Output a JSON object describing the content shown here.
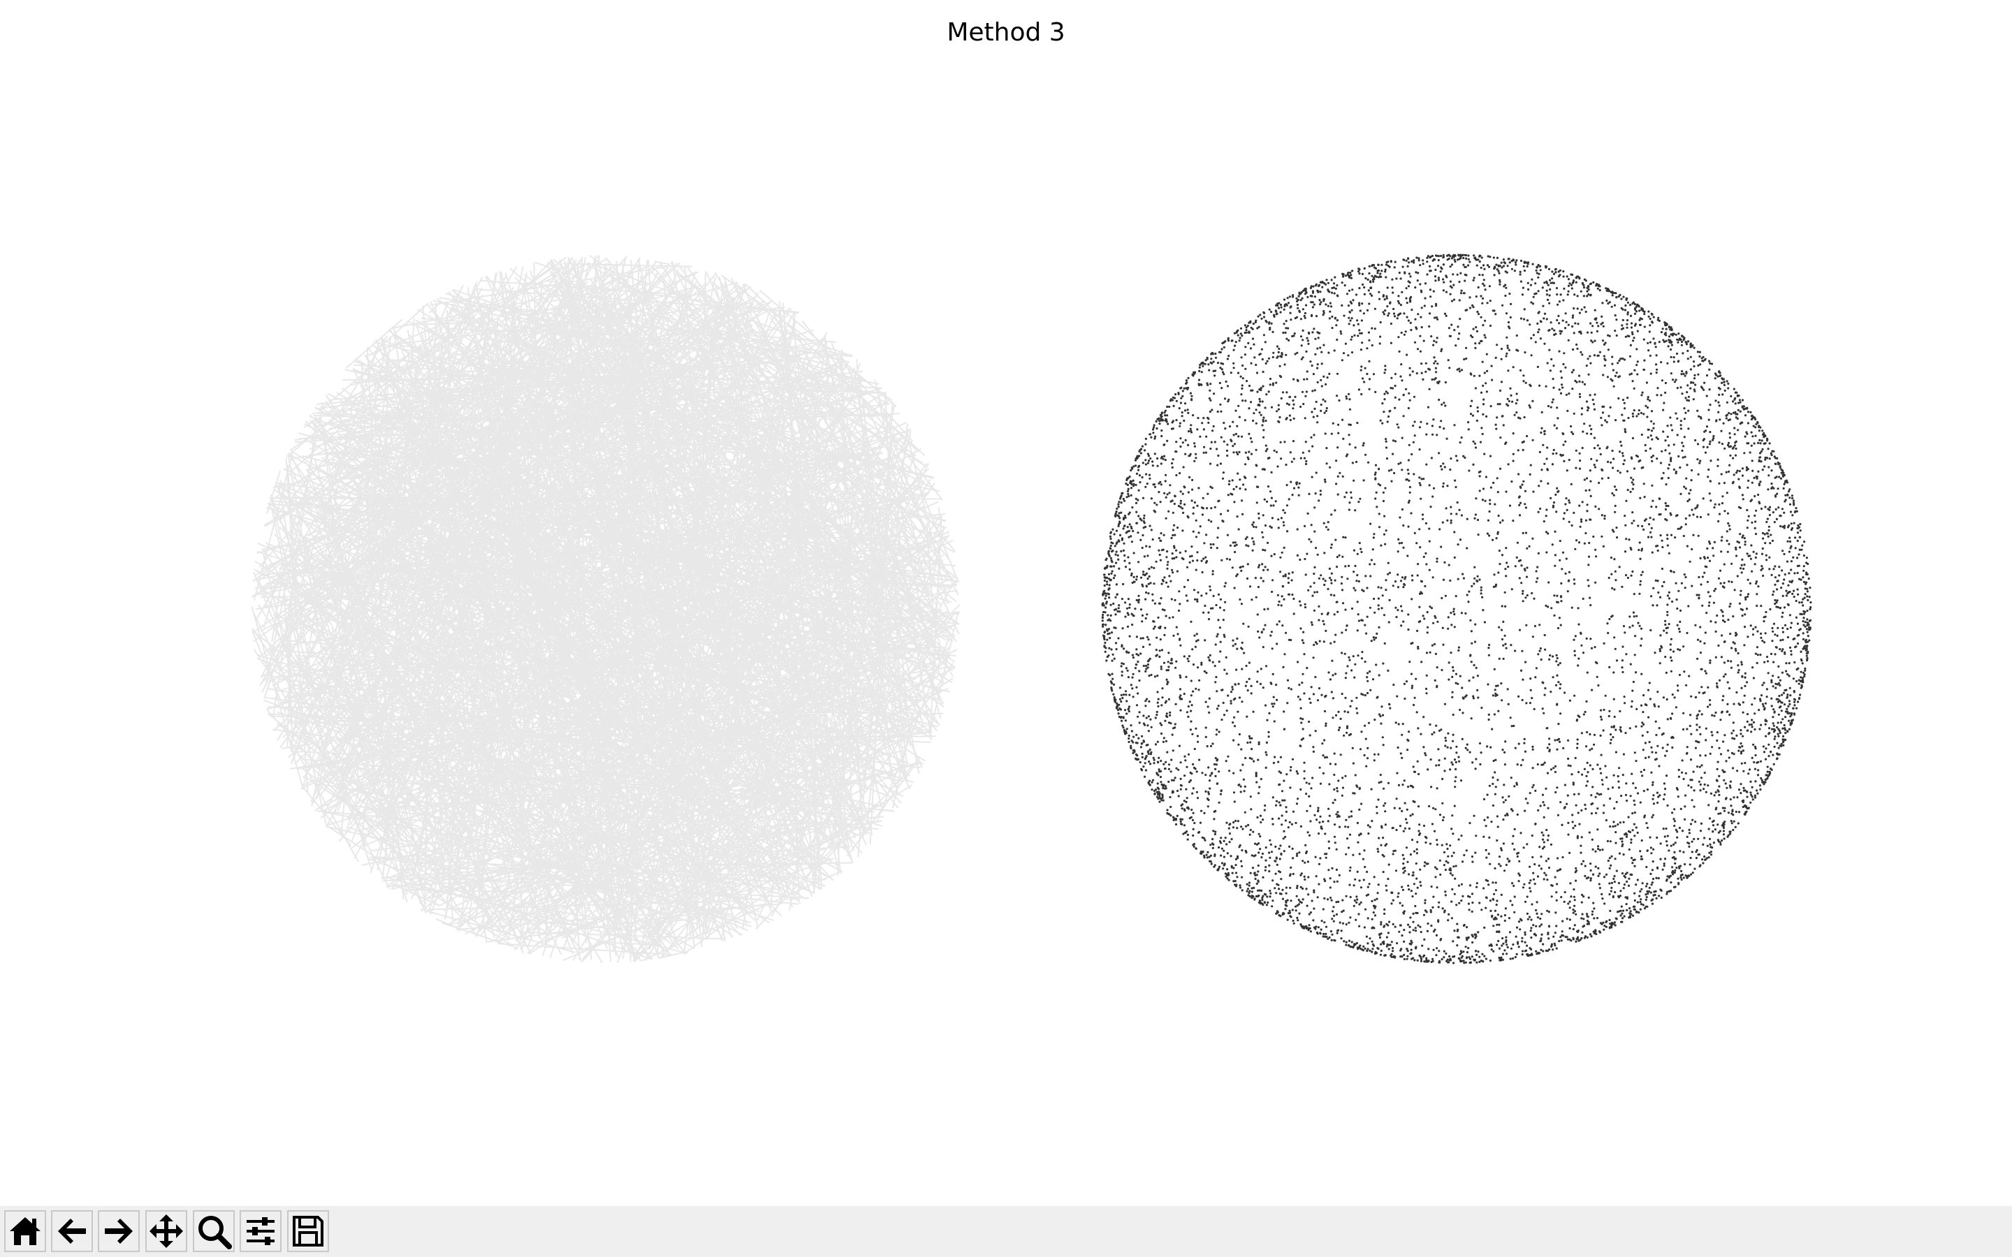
{
  "window": {
    "title": "Method 3"
  }
}
